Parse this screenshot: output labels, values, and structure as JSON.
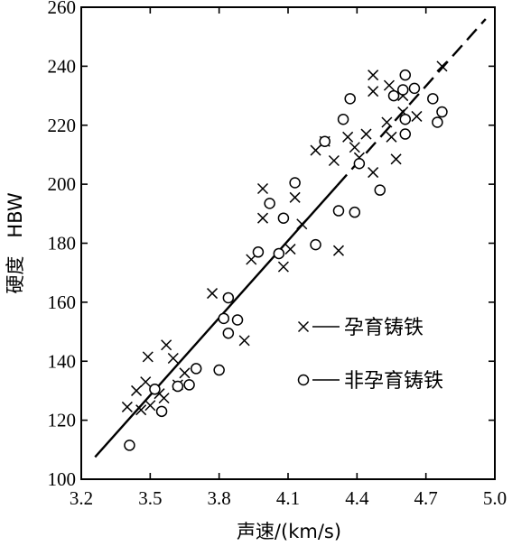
{
  "chart_data": {
    "type": "scatter",
    "title": "",
    "xlabel": "声速/(km/s)",
    "ylabel": "硬度   HBW",
    "xlim": [
      3.2,
      5.0
    ],
    "ylim": [
      100,
      260
    ],
    "x_ticks": [
      "3.2",
      "3.5",
      "3.8",
      "4.1",
      "4.4",
      "4.7",
      "5.0"
    ],
    "y_ticks": [
      "100",
      "120",
      "140",
      "160",
      "180",
      "200",
      "220",
      "240",
      "260"
    ],
    "grid": false,
    "legend_position": "lower-right inside",
    "series": [
      {
        "name": "孕育铸铁",
        "marker": "x",
        "points": [
          [
            3.4,
            124.5
          ],
          [
            3.44,
            130
          ],
          [
            3.46,
            123.5
          ],
          [
            3.48,
            133
          ],
          [
            3.49,
            141.5
          ],
          [
            3.5,
            125
          ],
          [
            3.54,
            129
          ],
          [
            3.56,
            127.5
          ],
          [
            3.57,
            145.5
          ],
          [
            3.6,
            141
          ],
          [
            3.62,
            132
          ],
          [
            3.65,
            136
          ],
          [
            3.77,
            163
          ],
          [
            3.91,
            147
          ],
          [
            3.94,
            174.5
          ],
          [
            3.99,
            198.5
          ],
          [
            3.99,
            188.5
          ],
          [
            4.08,
            172
          ],
          [
            4.11,
            178
          ],
          [
            4.13,
            195.5
          ],
          [
            4.16,
            186.5
          ],
          [
            4.22,
            211.5
          ],
          [
            4.26,
            214.5
          ],
          [
            4.3,
            208
          ],
          [
            4.32,
            177.5
          ],
          [
            4.36,
            216
          ],
          [
            4.39,
            212.5
          ],
          [
            4.41,
            209
          ],
          [
            4.44,
            217
          ],
          [
            4.47,
            204
          ],
          [
            4.47,
            231.5
          ],
          [
            4.47,
            237
          ],
          [
            4.53,
            221
          ],
          [
            4.54,
            233.5
          ],
          [
            4.55,
            216
          ],
          [
            4.57,
            208.5
          ],
          [
            4.6,
            224.5
          ],
          [
            4.6,
            230
          ],
          [
            4.66,
            223
          ],
          [
            4.77,
            240
          ]
        ]
      },
      {
        "name": "非孕育铸铁",
        "marker": "o",
        "points": [
          [
            3.41,
            111.5
          ],
          [
            3.52,
            130.5
          ],
          [
            3.55,
            123
          ],
          [
            3.62,
            131.5
          ],
          [
            3.67,
            132
          ],
          [
            3.7,
            137.5
          ],
          [
            3.8,
            137
          ],
          [
            3.82,
            154.5
          ],
          [
            3.84,
            161.5
          ],
          [
            3.84,
            149.5
          ],
          [
            3.88,
            154
          ],
          [
            3.97,
            177
          ],
          [
            4.02,
            193.5
          ],
          [
            4.06,
            176.5
          ],
          [
            4.08,
            188.5
          ],
          [
            4.13,
            200.5
          ],
          [
            4.22,
            179.5
          ],
          [
            4.26,
            214.5
          ],
          [
            4.32,
            191
          ],
          [
            4.34,
            222
          ],
          [
            4.37,
            229
          ],
          [
            4.39,
            190.5
          ],
          [
            4.41,
            207
          ],
          [
            4.5,
            198
          ],
          [
            4.56,
            230
          ],
          [
            4.6,
            232
          ],
          [
            4.61,
            237
          ],
          [
            4.61,
            217
          ],
          [
            4.61,
            222
          ],
          [
            4.65,
            232.5
          ],
          [
            4.73,
            229
          ],
          [
            4.75,
            221
          ],
          [
            4.77,
            224.5
          ]
        ]
      }
    ],
    "fit_line": {
      "style": "solid then dashed",
      "from": [
        3.26,
        107.5
      ],
      "to": [
        4.96,
        256
      ]
    }
  }
}
